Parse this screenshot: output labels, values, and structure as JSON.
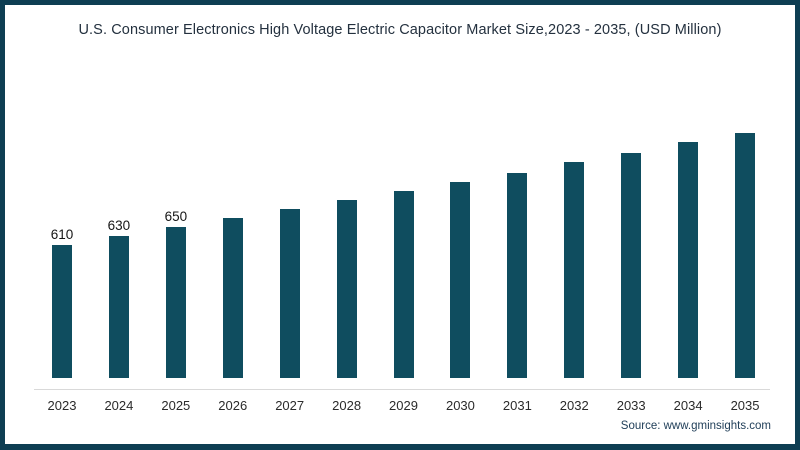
{
  "title": "U.S. Consumer Electronics High Voltage Electric Capacitor Market Size,2023 - 2035, (USD Million)",
  "source": {
    "text": "Source: www.gminsights.com"
  },
  "colors": {
    "bar": "#0f4d5f",
    "frame_border": "#0e3e53",
    "axis_line": "#d9d9d9",
    "title_text": "#24313f"
  },
  "chart_data": {
    "type": "bar",
    "title": "U.S. Consumer Electronics High Voltage Electric Capacitor Market Size,2023 - 2035, (USD Million)",
    "categories": [
      "2023",
      "2024",
      "2025",
      "2026",
      "2027",
      "2028",
      "2029",
      "2030",
      "2031",
      "2032",
      "2033",
      "2034",
      "2035"
    ],
    "values": [
      610,
      630,
      650,
      670,
      690,
      710,
      730,
      750,
      770,
      795,
      815,
      840,
      860
    ],
    "value_labels": [
      "610",
      "630",
      "650",
      "",
      "",
      "",
      "",
      "",
      "",
      "",
      "",
      "",
      ""
    ],
    "xlabel": "",
    "ylabel": "",
    "legend": "none",
    "grid": false,
    "value_axis_hidden": true,
    "layout_hints": {
      "bars_not_zero_based": true,
      "baseline_value": 315,
      "only_first_three_bars_labeled": true
    }
  }
}
